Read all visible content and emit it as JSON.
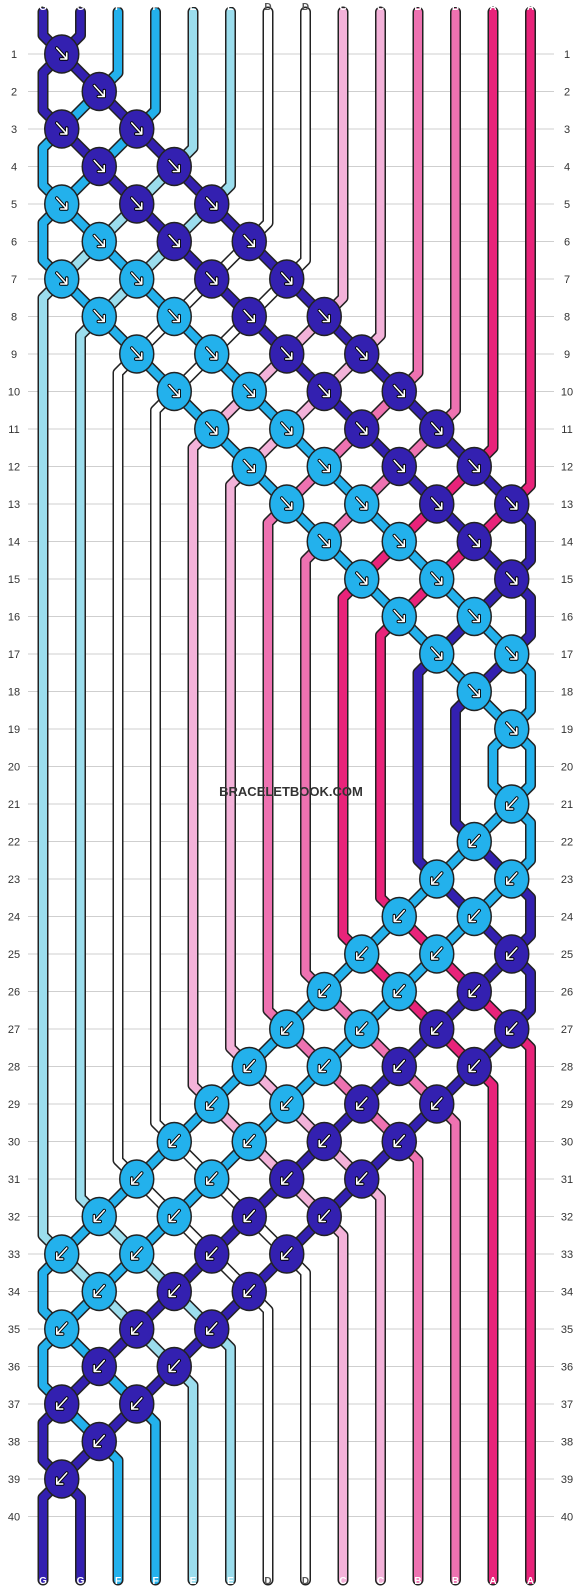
{
  "watermark": "BRACELETBOOK.COM",
  "string_labels": [
    "G",
    "G",
    "F",
    "F",
    "E",
    "E",
    "D",
    "D",
    "C",
    "C",
    "B",
    "B",
    "A",
    "A"
  ],
  "colors": {
    "A": "#e8237a",
    "B": "#ee72b1",
    "C": "#f3b2d9",
    "D": "#ffffff",
    "E": "#9bdded",
    "F": "#23b1ec",
    "G": "#3320b0"
  },
  "rows": [
    "1",
    "2",
    "3",
    "4",
    "5",
    "6",
    "7",
    "8",
    "9",
    "10",
    "11",
    "12",
    "13",
    "14",
    "15",
    "16",
    "17",
    "18",
    "19",
    "20",
    "21",
    "22",
    "23",
    "24",
    "25",
    "26",
    "27",
    "28",
    "29",
    "30",
    "31",
    "32",
    "33",
    "34",
    "35",
    "36",
    "37",
    "38",
    "39",
    "40"
  ],
  "knot_types": {
    "forward": "arrow-down-right",
    "backward": "arrow-down-left"
  }
}
